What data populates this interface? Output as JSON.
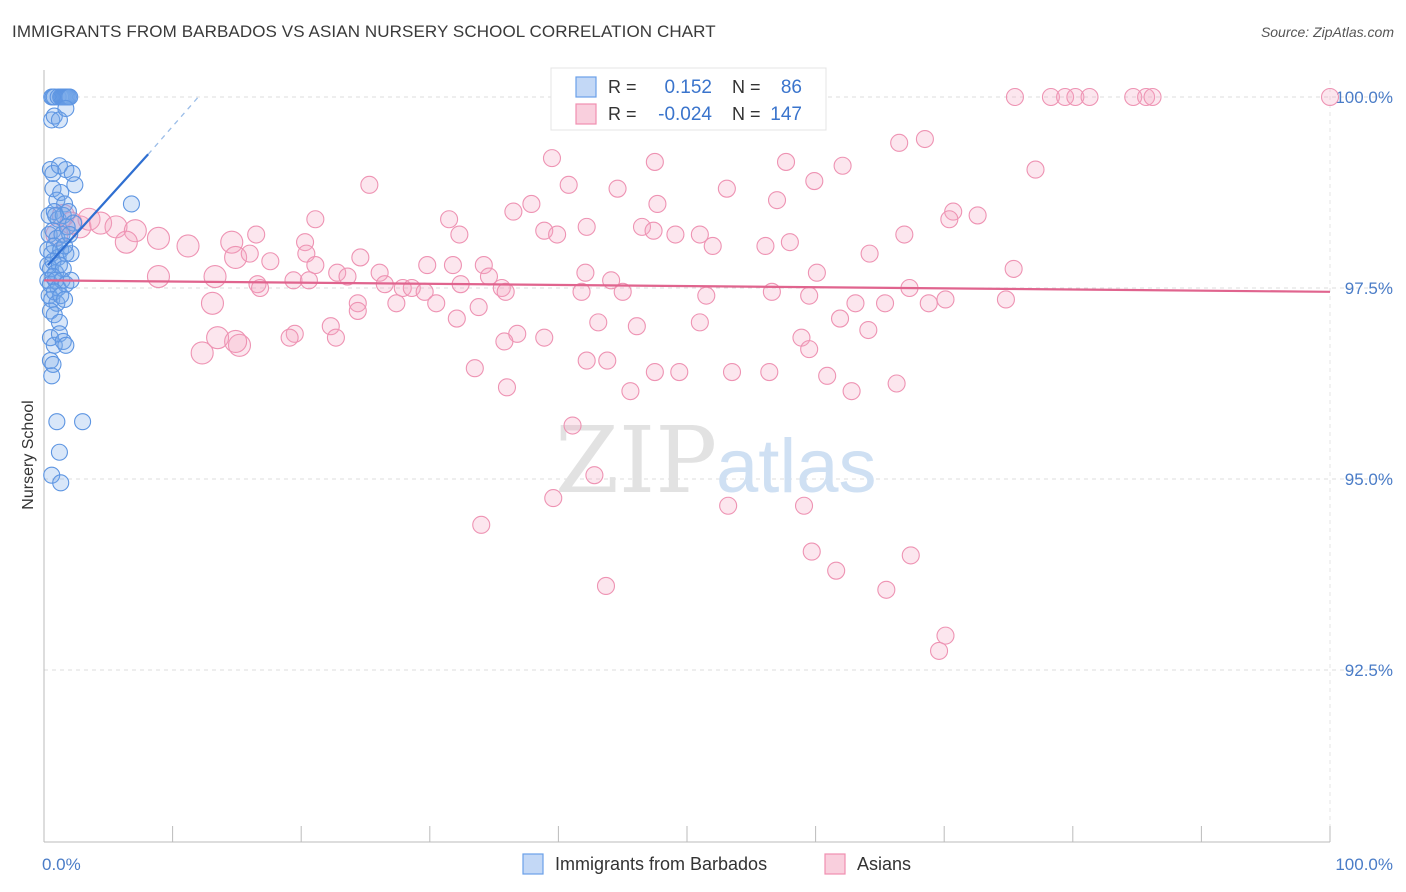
{
  "title": "IMMIGRANTS FROM BARBADOS VS ASIAN NURSERY SCHOOL CORRELATION CHART",
  "source": "Source: ZipAtlas.com",
  "watermark": {
    "zip": "ZIP",
    "atlas": "atlas"
  },
  "colors": {
    "blue": "#6aa0e8",
    "blue_line": "#2f6fd1",
    "pink": "#f08fb0",
    "pink_line": "#e0648e",
    "axis_text": "#4a7cc7"
  },
  "chart_data": {
    "type": "scatter",
    "title": "IMMIGRANTS FROM BARBADOS VS ASIAN NURSERY SCHOOL CORRELATION CHART",
    "xlabel": "",
    "ylabel": "Nursery School",
    "xlim": [
      0,
      100
    ],
    "ylim": [
      90.2,
      100.4
    ],
    "x_tick_labels": [
      {
        "value": 0,
        "label": "0.0%"
      },
      {
        "value": 100,
        "label": "100.0%"
      }
    ],
    "y_tick_labels": [
      {
        "value": 100.0,
        "label": "100.0%"
      },
      {
        "value": 97.5,
        "label": "97.5%"
      },
      {
        "value": 95.0,
        "label": "95.0%"
      },
      {
        "value": 92.5,
        "label": "92.5%"
      }
    ],
    "legend_box": [
      {
        "series": "Immigrants from Barbados",
        "r_label": "R =",
        "r_value": "0.152",
        "n_label": "N =",
        "n_value": "86"
      },
      {
        "series": "Asians",
        "r_label": "R =",
        "r_value": "-0.024",
        "n_label": "N =",
        "n_value": "147"
      }
    ],
    "legend": [
      "Immigrants from Barbados",
      "Asians"
    ],
    "series": [
      {
        "name": "Immigrants from Barbados",
        "color": "#6aa0e8",
        "trend": {
          "x": [
            0.3,
            8.1
          ],
          "y": [
            97.8,
            99.25
          ],
          "dash_to": [
            12.0,
            100.0
          ]
        },
        "points": [
          [
            0.6,
            100
          ],
          [
            0.7,
            100
          ],
          [
            0.8,
            100
          ],
          [
            1.1,
            100
          ],
          [
            1.3,
            100
          ],
          [
            1.4,
            100
          ],
          [
            1.5,
            100
          ],
          [
            1.6,
            100
          ],
          [
            1.7,
            100
          ],
          [
            1.8,
            100
          ],
          [
            1.9,
            100
          ],
          [
            2.0,
            100
          ],
          [
            0.6,
            99.7
          ],
          [
            0.8,
            99.75
          ],
          [
            1.2,
            99.7
          ],
          [
            1.7,
            99.85
          ],
          [
            0.5,
            99.05
          ],
          [
            0.7,
            99.0
          ],
          [
            1.2,
            99.1
          ],
          [
            1.7,
            99.05
          ],
          [
            2.2,
            99.0
          ],
          [
            0.7,
            98.8
          ],
          [
            1.0,
            98.65
          ],
          [
            1.3,
            98.75
          ],
          [
            1.6,
            98.6
          ],
          [
            2.4,
            98.85
          ],
          [
            6.8,
            98.6
          ],
          [
            0.4,
            98.45
          ],
          [
            0.8,
            98.5
          ],
          [
            1.1,
            98.4
          ],
          [
            1.5,
            98.45
          ],
          [
            1.9,
            98.5
          ],
          [
            2.3,
            98.35
          ],
          [
            0.4,
            98.2
          ],
          [
            0.7,
            98.25
          ],
          [
            1.0,
            98.15
          ],
          [
            1.4,
            98.2
          ],
          [
            1.8,
            98.3
          ],
          [
            2.0,
            98.2
          ],
          [
            0.3,
            98.0
          ],
          [
            0.6,
            97.95
          ],
          [
            0.8,
            98.05
          ],
          [
            1.1,
            97.9
          ],
          [
            1.3,
            98.0
          ],
          [
            1.7,
            97.95
          ],
          [
            2.1,
            97.95
          ],
          [
            0.3,
            97.8
          ],
          [
            0.5,
            97.75
          ],
          [
            0.7,
            97.85
          ],
          [
            0.9,
            97.7
          ],
          [
            1.2,
            97.8
          ],
          [
            1.5,
            97.75
          ],
          [
            0.3,
            97.6
          ],
          [
            0.5,
            97.55
          ],
          [
            0.7,
            97.65
          ],
          [
            0.9,
            97.6
          ],
          [
            1.1,
            97.5
          ],
          [
            1.4,
            97.6
          ],
          [
            1.7,
            97.55
          ],
          [
            2.1,
            97.6
          ],
          [
            0.4,
            97.4
          ],
          [
            0.6,
            97.35
          ],
          [
            0.8,
            97.45
          ],
          [
            1.0,
            97.3
          ],
          [
            1.3,
            97.4
          ],
          [
            1.6,
            97.35
          ],
          [
            0.5,
            97.2
          ],
          [
            0.8,
            97.15
          ],
          [
            1.2,
            97.05
          ],
          [
            0.5,
            96.85
          ],
          [
            0.8,
            96.75
          ],
          [
            1.2,
            96.9
          ],
          [
            1.5,
            96.8
          ],
          [
            1.7,
            96.75
          ],
          [
            0.5,
            96.55
          ],
          [
            0.7,
            96.5
          ],
          [
            0.6,
            96.35
          ],
          [
            1.0,
            95.75
          ],
          [
            3.0,
            95.75
          ],
          [
            1.2,
            95.35
          ],
          [
            0.6,
            95.05
          ],
          [
            1.3,
            94.95
          ],
          [
            0.9,
            98.45
          ],
          [
            1.6,
            98.05
          ]
        ]
      },
      {
        "name": "Asians",
        "color": "#f08fb0",
        "trend": {
          "x": [
            0,
            100
          ],
          "y": [
            97.6,
            97.45
          ]
        },
        "points": [
          [
            75.5,
            100
          ],
          [
            78.3,
            100
          ],
          [
            79.4,
            100
          ],
          [
            80.2,
            100
          ],
          [
            81.3,
            100
          ],
          [
            84.7,
            100
          ],
          [
            85.7,
            100
          ],
          [
            86.2,
            100
          ],
          [
            100,
            100
          ],
          [
            68.5,
            99.45
          ],
          [
            66.5,
            99.4
          ],
          [
            39.5,
            99.2
          ],
          [
            47.5,
            99.15
          ],
          [
            57.7,
            99.15
          ],
          [
            62.1,
            99.1
          ],
          [
            77.1,
            99.05
          ],
          [
            40.8,
            98.85
          ],
          [
            25.3,
            98.85
          ],
          [
            44.6,
            98.8
          ],
          [
            53.1,
            98.8
          ],
          [
            59.9,
            98.9
          ],
          [
            57.0,
            98.65
          ],
          [
            47.7,
            98.6
          ],
          [
            37.9,
            98.6
          ],
          [
            36.5,
            98.5
          ],
          [
            70.7,
            98.5
          ],
          [
            70.4,
            98.4
          ],
          [
            72.6,
            98.45
          ],
          [
            31.5,
            98.4
          ],
          [
            21.1,
            98.4
          ],
          [
            42.2,
            98.3
          ],
          [
            38.9,
            98.25
          ],
          [
            46.5,
            98.3
          ],
          [
            47.4,
            98.25
          ],
          [
            39.9,
            98.2
          ],
          [
            49.1,
            98.2
          ],
          [
            51.0,
            98.2
          ],
          [
            32.3,
            98.2
          ],
          [
            52.0,
            98.05
          ],
          [
            56.1,
            98.05
          ],
          [
            66.9,
            98.2
          ],
          [
            64.2,
            97.95
          ],
          [
            58.0,
            98.1
          ],
          [
            16.5,
            98.2
          ],
          [
            20.3,
            98.1
          ],
          [
            14.6,
            98.1
          ],
          [
            14.9,
            97.9
          ],
          [
            8.9,
            98.15
          ],
          [
            11.2,
            98.05
          ],
          [
            16.0,
            97.95
          ],
          [
            17.6,
            97.85
          ],
          [
            20.4,
            97.95
          ],
          [
            21.1,
            97.8
          ],
          [
            22.8,
            97.7
          ],
          [
            24.6,
            97.9
          ],
          [
            26.1,
            97.7
          ],
          [
            29.8,
            97.8
          ],
          [
            31.8,
            97.8
          ],
          [
            32.4,
            97.55
          ],
          [
            34.2,
            97.8
          ],
          [
            34.6,
            97.65
          ],
          [
            42.1,
            97.7
          ],
          [
            44.1,
            97.6
          ],
          [
            60.1,
            97.7
          ],
          [
            75.4,
            97.75
          ],
          [
            13.3,
            97.65
          ],
          [
            16.6,
            97.55
          ],
          [
            19.4,
            97.6
          ],
          [
            20.6,
            97.6
          ],
          [
            23.6,
            97.65
          ],
          [
            27.9,
            97.5
          ],
          [
            28.6,
            97.5
          ],
          [
            24.4,
            97.3
          ],
          [
            26.5,
            97.55
          ],
          [
            29.6,
            97.45
          ],
          [
            30.5,
            97.3
          ],
          [
            33.8,
            97.25
          ],
          [
            35.6,
            97.5
          ],
          [
            35.9,
            97.45
          ],
          [
            41.8,
            97.45
          ],
          [
            45.0,
            97.45
          ],
          [
            51.5,
            97.4
          ],
          [
            56.6,
            97.45
          ],
          [
            59.5,
            97.4
          ],
          [
            63.1,
            97.3
          ],
          [
            65.4,
            97.3
          ],
          [
            67.3,
            97.5
          ],
          [
            68.8,
            97.3
          ],
          [
            70.1,
            97.35
          ],
          [
            74.8,
            97.35
          ],
          [
            13.1,
            97.3
          ],
          [
            16.8,
            97.5
          ],
          [
            27.4,
            97.3
          ],
          [
            24.4,
            97.2
          ],
          [
            22.3,
            97.0
          ],
          [
            19.5,
            96.9
          ],
          [
            32.1,
            97.1
          ],
          [
            36.8,
            96.9
          ],
          [
            38.9,
            96.85
          ],
          [
            43.1,
            97.05
          ],
          [
            46.1,
            97.0
          ],
          [
            51.0,
            97.05
          ],
          [
            58.9,
            96.85
          ],
          [
            59.5,
            96.7
          ],
          [
            61.9,
            97.1
          ],
          [
            64.1,
            96.95
          ],
          [
            13.5,
            96.85
          ],
          [
            15.2,
            96.75
          ],
          [
            19.1,
            96.85
          ],
          [
            22.7,
            96.85
          ],
          [
            35.8,
            96.8
          ],
          [
            43.8,
            96.55
          ],
          [
            47.5,
            96.4
          ],
          [
            49.4,
            96.4
          ],
          [
            33.5,
            96.45
          ],
          [
            42.2,
            96.55
          ],
          [
            53.5,
            96.4
          ],
          [
            56.4,
            96.4
          ],
          [
            60.9,
            96.35
          ],
          [
            66.3,
            96.25
          ],
          [
            36.0,
            96.2
          ],
          [
            45.6,
            96.15
          ],
          [
            62.8,
            96.15
          ],
          [
            41.1,
            95.7
          ],
          [
            39.6,
            94.75
          ],
          [
            42.8,
            95.05
          ],
          [
            34.0,
            94.4
          ],
          [
            53.2,
            94.65
          ],
          [
            59.1,
            94.65
          ],
          [
            43.7,
            93.6
          ],
          [
            59.7,
            94.05
          ],
          [
            61.6,
            93.8
          ],
          [
            65.5,
            93.55
          ],
          [
            67.4,
            94.0
          ],
          [
            69.6,
            92.75
          ],
          [
            70.1,
            92.95
          ],
          [
            2.8,
            98.3
          ],
          [
            3.5,
            98.4
          ],
          [
            4.4,
            98.35
          ],
          [
            5.6,
            98.3
          ],
          [
            7.1,
            98.25
          ],
          [
            1.0,
            98.2
          ],
          [
            1.5,
            98.45
          ],
          [
            2.1,
            98.35
          ],
          [
            8.9,
            97.65
          ],
          [
            6.4,
            98.1
          ],
          [
            14.9,
            96.8
          ],
          [
            12.3,
            96.65
          ]
        ]
      }
    ]
  }
}
